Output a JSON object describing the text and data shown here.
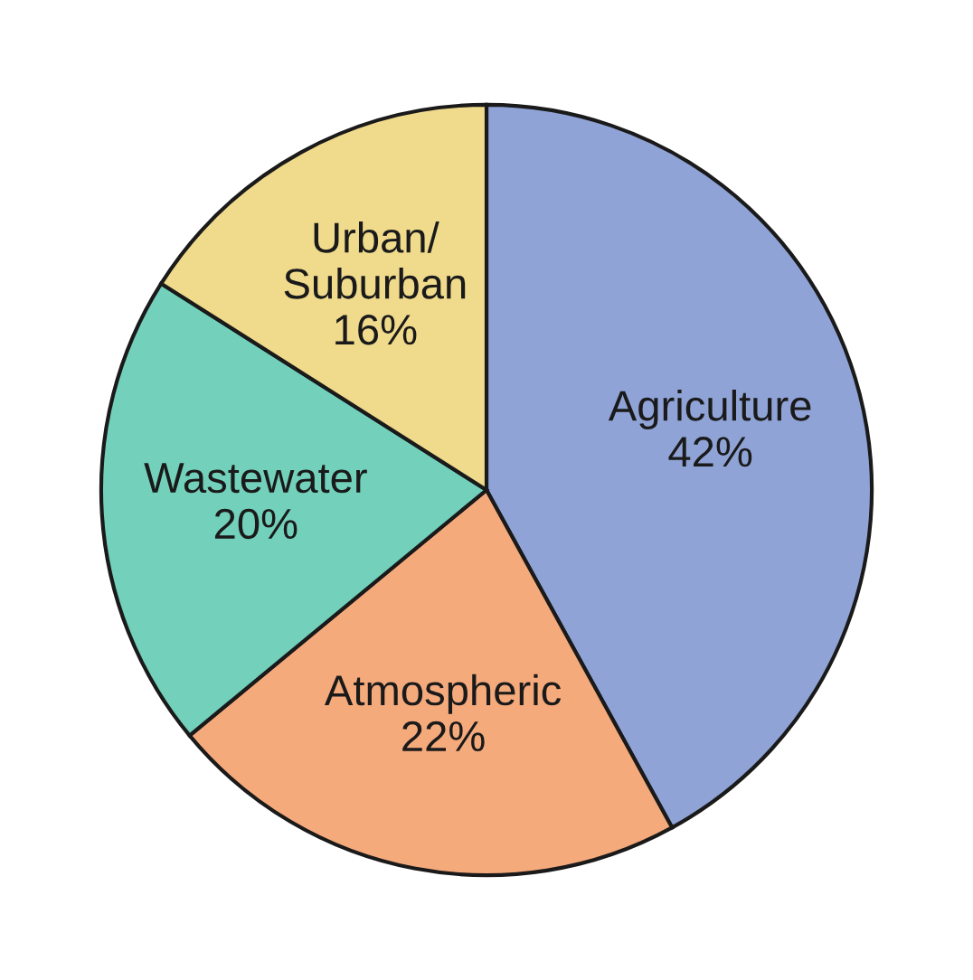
{
  "chart_data": {
    "type": "pie",
    "categories": [
      "Agriculture",
      "Atmospheric",
      "Wastewater",
      "Urban/\nSuburban"
    ],
    "values": [
      42,
      22,
      20,
      16
    ],
    "value_labels": [
      "42%",
      "22%",
      "20%",
      "16%"
    ],
    "colors": [
      "#8fa3d6",
      "#f5aa7c",
      "#72d0bb",
      "#f0da8c"
    ]
  }
}
